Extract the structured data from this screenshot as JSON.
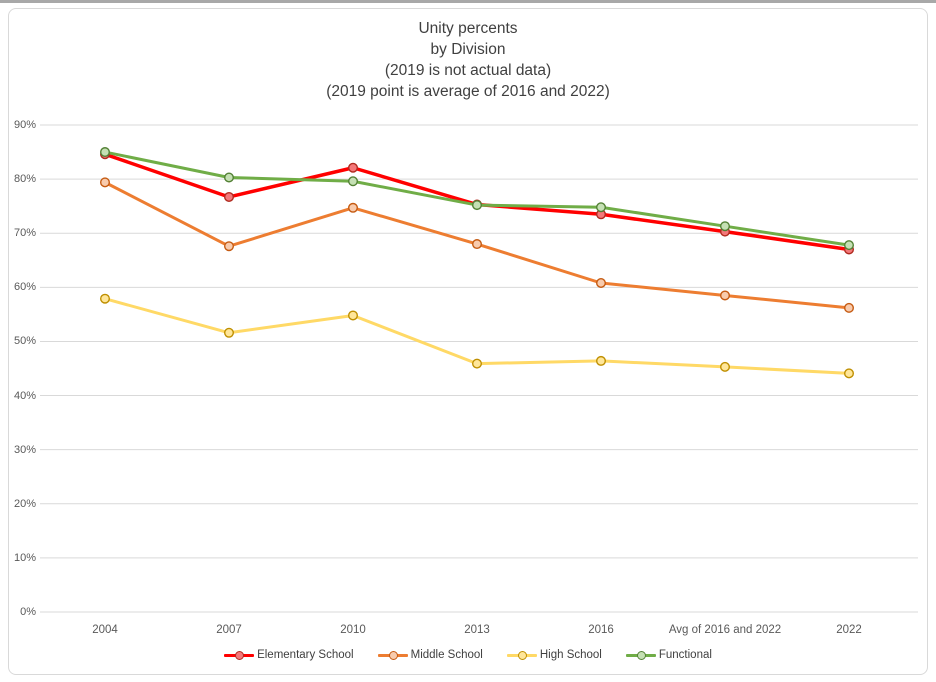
{
  "page": {
    "title_lines": [
      "Unity percents",
      "by Division",
      "(2019 is not actual data)",
      "(2019 point is average of 2016 and 2022)"
    ]
  },
  "chart_data": {
    "type": "line",
    "title": "Unity percents by Division (2019 is not actual data) (2019 point is average of 2016 and 2022)",
    "categories": [
      "2004",
      "2007",
      "2010",
      "2013",
      "2016",
      "Avg of 2016 and 2022",
      "2022"
    ],
    "series": [
      {
        "name": "Elementary School",
        "color": "#ff0000",
        "marker_fill": "#f4787a",
        "marker_stroke": "#b02b20",
        "values": [
          84.6,
          76.7,
          82.1,
          75.3,
          73.5,
          70.3,
          67.0
        ]
      },
      {
        "name": "Middle School",
        "color": "#ed7d31",
        "marker_fill": "#f8cbad",
        "marker_stroke": "#c55a11",
        "values": [
          79.4,
          67.6,
          74.7,
          68.0,
          60.8,
          58.5,
          56.2
        ]
      },
      {
        "name": "High School",
        "color": "#ffd966",
        "marker_fill": "#ffe699",
        "marker_stroke": "#bf8f00",
        "values": [
          57.9,
          51.6,
          54.8,
          45.9,
          46.4,
          45.3,
          44.1
        ]
      },
      {
        "name": "Functional",
        "color": "#70ad47",
        "marker_fill": "#c5e0b4",
        "marker_stroke": "#538135",
        "values": [
          85.0,
          80.3,
          79.6,
          75.2,
          74.8,
          71.3,
          67.8
        ]
      }
    ],
    "y_ticks": [
      "0%",
      "10%",
      "20%",
      "30%",
      "40%",
      "50%",
      "60%",
      "70%",
      "80%",
      "90%"
    ],
    "ylim": [
      0,
      90
    ],
    "y_tick_step": 10,
    "grid": true,
    "legend_position": "bottom",
    "colors": {
      "grid": "#d9d9d9",
      "axis_text": "#595959",
      "title_text": "#404040",
      "frame_border": "#d9d9d9",
      "top_strip": "#a8a8a8"
    }
  }
}
